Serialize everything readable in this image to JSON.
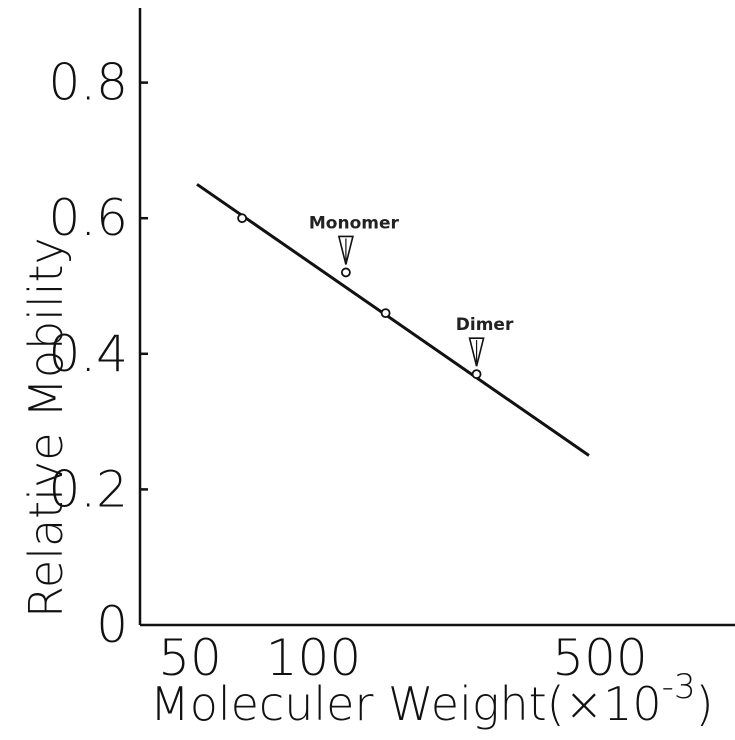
{
  "chart_data": {
    "type": "scatter",
    "xscale": "log",
    "xlabel": "Moleculer Weight",
    "xlabel_unit": "(×10",
    "xlabel_exp": "-3",
    "xlabel_close": ")",
    "ylabel": "Relative Mobility",
    "xlim": [
      40,
      800
    ],
    "ylim": [
      0,
      0.9
    ],
    "x_ticks": [
      {
        "value": 50,
        "label": "50"
      },
      {
        "value": 100,
        "label": "100"
      },
      {
        "value": 500,
        "label": "500"
      }
    ],
    "y_ticks": [
      {
        "value": 0,
        "label": "0"
      },
      {
        "value": 0.2,
        "label": "0.2"
      },
      {
        "value": 0.4,
        "label": "0.4"
      },
      {
        "value": 0.6,
        "label": "0.6"
      },
      {
        "value": 0.8,
        "label": "0.8"
      }
    ],
    "points": [
      {
        "x": 67,
        "y": 0.6
      },
      {
        "x": 120,
        "y": 0.52
      },
      {
        "x": 150,
        "y": 0.46
      },
      {
        "x": 250,
        "y": 0.37
      }
    ],
    "fit_line": {
      "x": [
        52,
        470
      ],
      "y": [
        0.65,
        0.25
      ]
    },
    "annotations": [
      {
        "text": "Monomer",
        "x": 120,
        "y": 0.52
      },
      {
        "text": "Dimer",
        "x": 250,
        "y": 0.37
      }
    ],
    "grid": false
  }
}
